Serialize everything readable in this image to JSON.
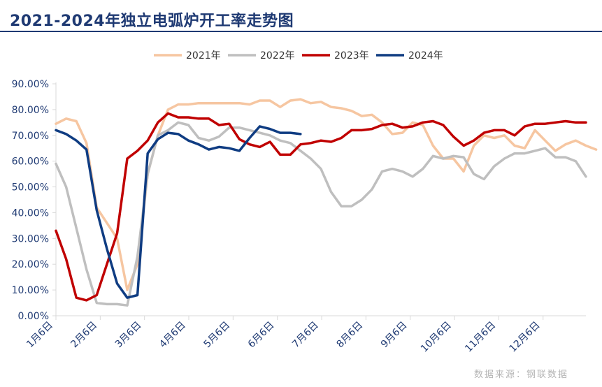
{
  "title": "2021-2024年独立电弧炉开工率走势图",
  "source": "数据来源：钢联数据",
  "colors": {
    "title": "#1f3a73",
    "axis": "#d9d9d9",
    "tick_text": "#1f3a73"
  },
  "chart_data": {
    "type": "line",
    "title": "2021-2024年独立电弧炉开工率走势图",
    "xlabel": "",
    "ylabel": "",
    "ylim": [
      0,
      90
    ],
    "yticks": [
      "0.00%",
      "10.00%",
      "20.00%",
      "30.00%",
      "40.00%",
      "50.00%",
      "60.00%",
      "70.00%",
      "80.00%",
      "90.00%"
    ],
    "xticks": [
      "1月6日",
      "2月6日",
      "3月6日",
      "4月6日",
      "5月6日",
      "6月6日",
      "7月6日",
      "8月6日",
      "9月6日",
      "10月6日",
      "11月6日",
      "12月6日"
    ],
    "x_unit": "week",
    "legend_position": "top",
    "grid": false,
    "series": [
      {
        "name": "2021年",
        "color": "#f6c6a1",
        "values": [
          74.5,
          76.5,
          75.5,
          67,
          42,
          36,
          30,
          10,
          20,
          55,
          70,
          80,
          82,
          82,
          82.5,
          82.5,
          82.5,
          82.5,
          82.5,
          82,
          83.5,
          83.5,
          81,
          83.5,
          84,
          82.5,
          83,
          81,
          80.5,
          79.5,
          77.5,
          78,
          75,
          70.5,
          71,
          75,
          74,
          66,
          61,
          61,
          56,
          66,
          70,
          69,
          70,
          66,
          65,
          72,
          68,
          64,
          66.5,
          68,
          66,
          64.5
        ]
      },
      {
        "name": "2022年",
        "color": "#bfbfbf",
        "values": [
          59,
          50,
          34,
          18,
          5,
          4.5,
          4.5,
          4,
          23,
          55,
          70,
          72,
          75,
          74,
          69,
          68,
          69.5,
          73,
          73,
          72,
          71,
          70,
          68,
          67,
          64,
          61,
          57,
          48,
          42.5,
          42.5,
          45,
          49,
          56,
          57,
          56,
          54,
          57,
          62,
          61,
          62,
          61.5,
          55,
          53,
          58,
          61,
          63,
          63,
          64,
          65,
          61.5,
          61.5,
          60,
          54
        ]
      },
      {
        "name": "2023年",
        "color": "#c00000",
        "values": [
          33,
          22,
          7,
          6,
          8,
          20,
          32,
          61,
          64,
          68,
          75,
          78.5,
          77,
          77,
          76.5,
          76.5,
          74,
          74.5,
          68.5,
          66.5,
          65.5,
          67.5,
          62.5,
          62.5,
          66.5,
          67,
          68,
          67.5,
          69,
          72,
          72,
          72.5,
          74,
          74.5,
          73,
          73.5,
          75,
          75.5,
          74,
          69.5,
          66,
          68,
          71,
          72,
          72,
          70,
          73.5,
          74.5,
          74.5,
          75,
          75.5,
          75,
          75
        ]
      },
      {
        "name": "2024年",
        "color": "#0f3c82",
        "values": [
          72,
          70.5,
          68,
          64.5,
          41,
          26,
          12.5,
          7,
          8,
          63,
          68.5,
          71,
          70.5,
          68,
          66.5,
          64.5,
          65.5,
          65,
          64,
          69,
          73.5,
          72.5,
          71,
          71,
          70.5
        ]
      }
    ]
  }
}
